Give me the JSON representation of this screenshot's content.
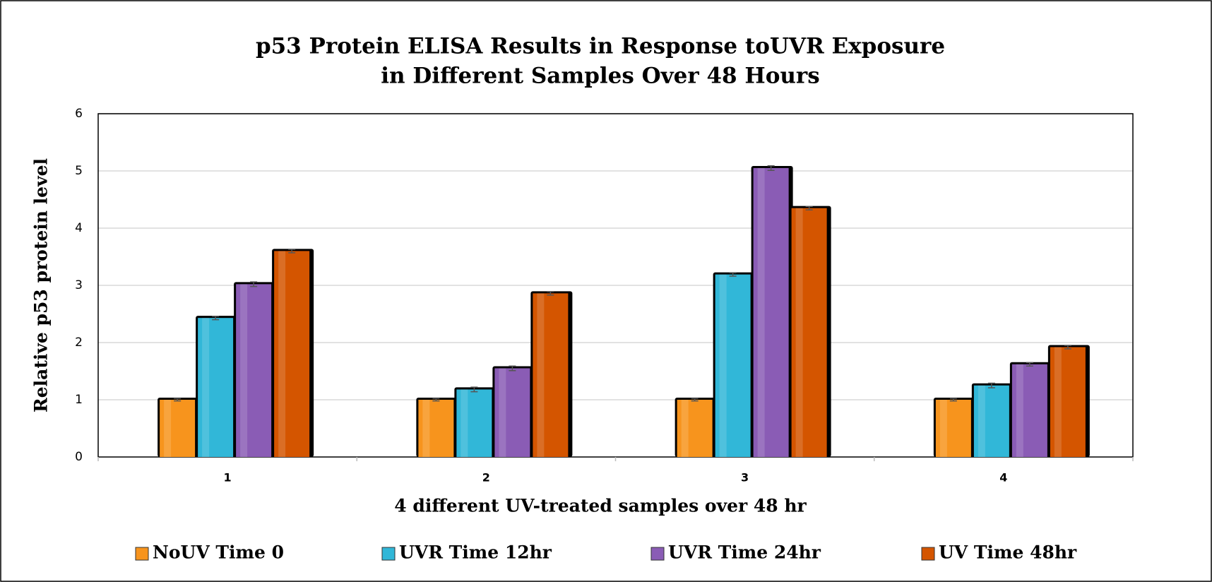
{
  "chart_data": {
    "type": "bar",
    "title": [
      "p53 Protein ELISA Results in Response toUVR Exposure",
      "in Different Samples Over 48 Hours"
    ],
    "x_label": "4 different UV-treated samples over 48 hr",
    "y_label": "Relative p53 protein level",
    "categories": [
      "1",
      "2",
      "3",
      "4"
    ],
    "series": [
      {
        "name": "NoUV Time 0",
        "color": "#f7941d",
        "values": [
          1,
          1,
          1,
          1
        ],
        "errors": [
          0.02,
          0.02,
          0.02,
          0.02
        ]
      },
      {
        "name": "UVR Time 12hr",
        "color": "#31b7d8",
        "values": [
          2.43,
          1.18,
          3.19,
          1.25
        ],
        "errors": [
          0.03,
          0.04,
          0.03,
          0.04
        ]
      },
      {
        "name": "UVR Time 24hr",
        "color": "#8a5cb5",
        "values": [
          3.02,
          1.55,
          5.05,
          1.62
        ],
        "errors": [
          0.04,
          0.04,
          0.04,
          0.03
        ]
      },
      {
        "name": "UV Time 48hr",
        "color": "#d45500",
        "values": [
          3.6,
          2.86,
          4.35,
          1.92
        ],
        "errors": [
          0.03,
          0.03,
          0.03,
          0.03
        ]
      }
    ],
    "ylim": [
      0,
      6
    ],
    "yticks": [
      0,
      1,
      2,
      3,
      4,
      5,
      6
    ],
    "grid": true,
    "legend": "bottom"
  }
}
